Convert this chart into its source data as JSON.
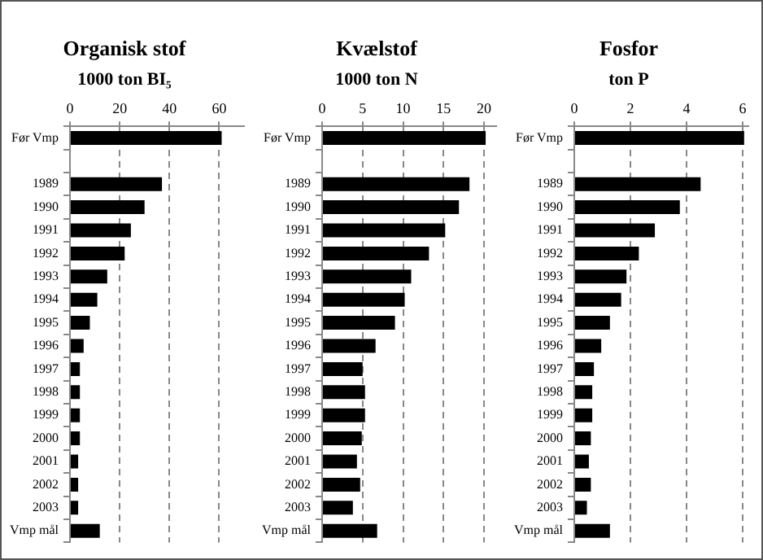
{
  "chart_data": [
    {
      "type": "bar",
      "orientation": "horizontal",
      "title": "Organisk stof",
      "subtitle": "1000 ton BI₅",
      "categories": [
        "Før Vmp",
        null,
        "1989",
        "1990",
        "1991",
        "1992",
        "1993",
        "1994",
        "1995",
        "1996",
        "1997",
        "1998",
        "1999",
        "2000",
        "2001",
        "2002",
        "2003",
        "Vmp mål"
      ],
      "values": [
        61,
        null,
        37,
        30,
        24.5,
        22,
        15,
        11,
        8,
        5.5,
        4,
        4,
        4,
        4,
        3.3,
        3.3,
        3.3,
        12
      ],
      "color": "#000000",
      "xlim": [
        0,
        70
      ],
      "xticks": [
        0,
        20,
        40,
        60
      ],
      "grid": "x",
      "line_style": "dashed"
    },
    {
      "type": "bar",
      "orientation": "horizontal",
      "title": "Kvælstof",
      "subtitle": "1000 ton N",
      "categories": [
        "Før Vmp",
        null,
        "1989",
        "1990",
        "1991",
        "1992",
        "1993",
        "1994",
        "1995",
        "1996",
        "1997",
        "1998",
        "1999",
        "2000",
        "2001",
        "2002",
        "2003",
        "Vmp mål"
      ],
      "values": [
        20.2,
        null,
        18.2,
        16.9,
        15.2,
        13.2,
        11,
        10.2,
        9,
        6.6,
        5,
        5.3,
        5.3,
        4.9,
        4.3,
        4.7,
        3.8,
        6.8
      ],
      "color": "#000000",
      "xlim": [
        0,
        21.5
      ],
      "xticks": [
        0,
        5,
        10,
        15,
        20
      ],
      "grid": "x",
      "line_style": "dashed"
    },
    {
      "type": "bar",
      "orientation": "horizontal",
      "title": "Fosfor",
      "subtitle": "ton P",
      "categories": [
        "Før Vmp",
        null,
        "1989",
        "1990",
        "1991",
        "1992",
        "1993",
        "1994",
        "1995",
        "1996",
        "1997",
        "1998",
        "1999",
        "2000",
        "2001",
        "2002",
        "2003",
        "Vmp mål"
      ],
      "values": [
        6.05,
        null,
        4.5,
        3.76,
        2.87,
        2.3,
        1.86,
        1.67,
        1.27,
        0.96,
        0.7,
        0.64,
        0.64,
        0.59,
        0.52,
        0.59,
        0.45,
        1.27
      ],
      "color": "#000000",
      "xlim": [
        0,
        6.2
      ],
      "xticks": [
        0,
        2,
        4,
        6
      ],
      "grid": "x",
      "line_style": "dashed"
    }
  ]
}
